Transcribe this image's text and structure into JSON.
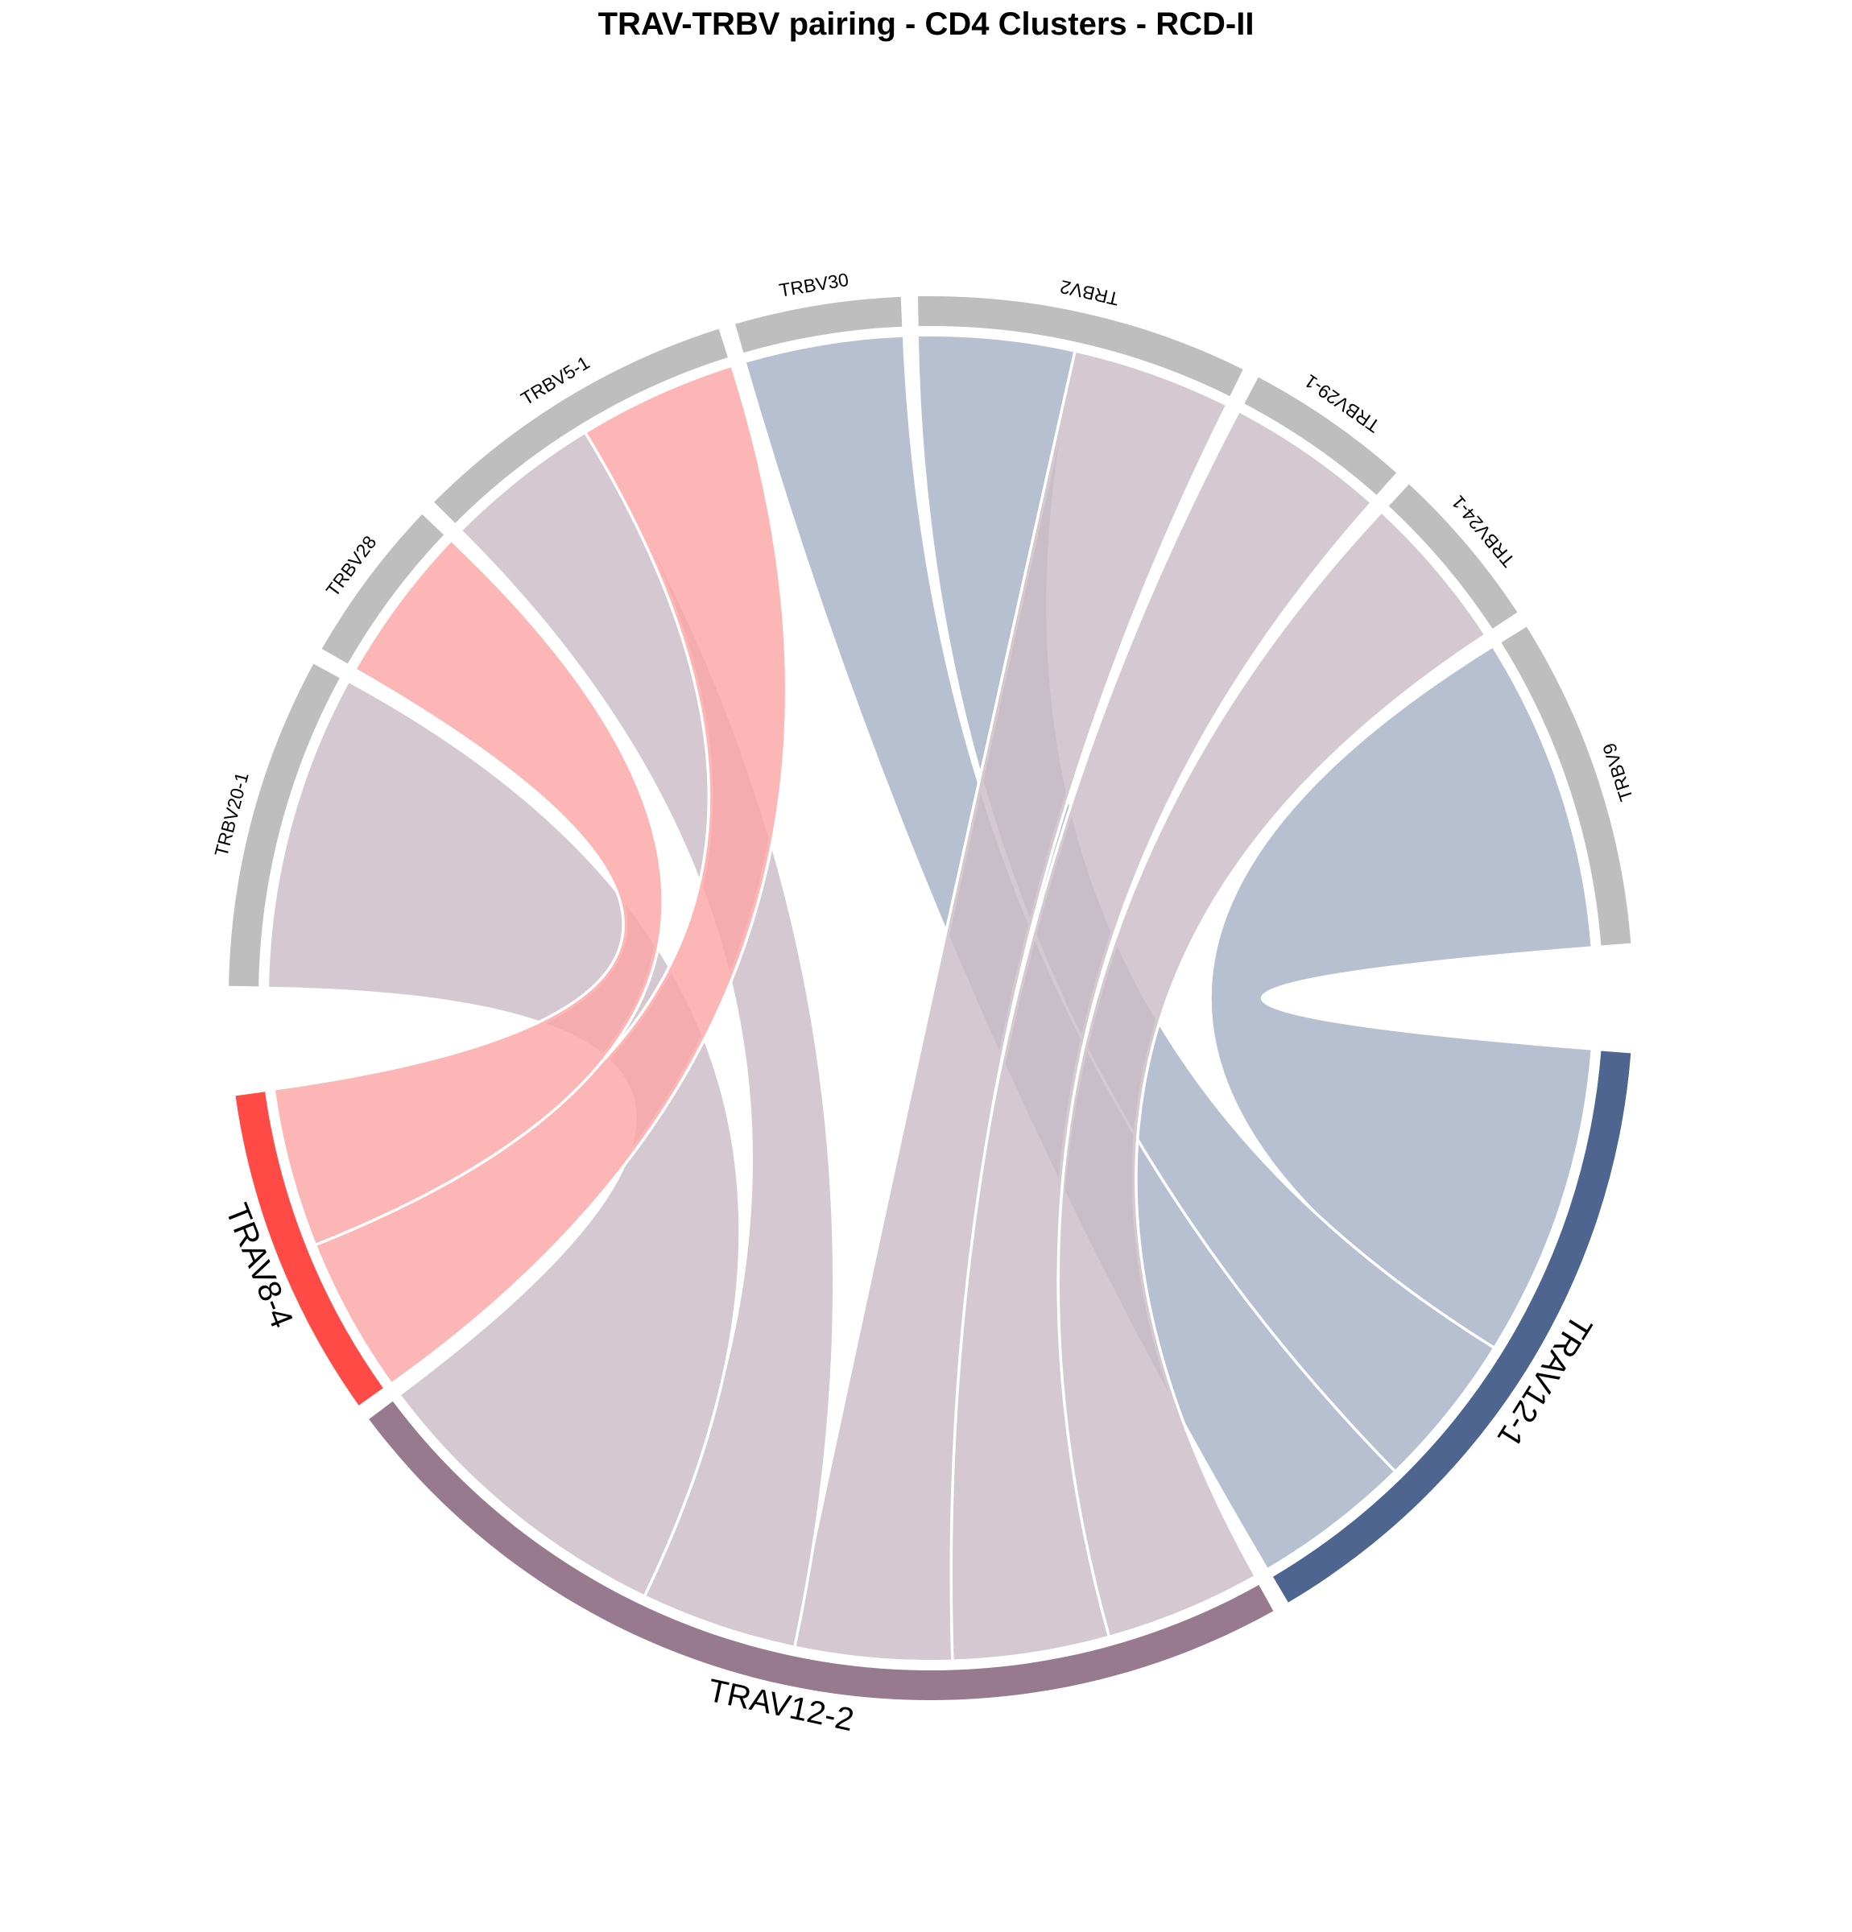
{
  "chart_data": {
    "type": "chord",
    "title": "TRAV-TRBV pairing - CD4 Clusters - RCD-II",
    "sectors": [
      {
        "name": "TRBV9",
        "value": 1,
        "group": "TRBV",
        "color": "#bebebe"
      },
      {
        "name": "TRBV24-1",
        "value": 0.5,
        "group": "TRBV",
        "color": "#bebebe"
      },
      {
        "name": "TRBV29-1",
        "value": 0.5,
        "group": "TRBV",
        "color": "#bebebe"
      },
      {
        "name": "TRBV2",
        "value": 1,
        "group": "TRBV",
        "color": "#bebebe"
      },
      {
        "name": "TRBV30",
        "value": 0.5,
        "group": "TRBV",
        "color": "#bebebe"
      },
      {
        "name": "TRBV5-1",
        "value": 1,
        "group": "TRBV",
        "color": "#bebebe"
      },
      {
        "name": "TRBV28",
        "value": 0.5,
        "group": "TRBV",
        "color": "#bebebe"
      },
      {
        "name": "TRBV20-1",
        "value": 1,
        "group": "TRBV",
        "color": "#bebebe"
      },
      {
        "name": "TRAV8-4",
        "value": 1,
        "group": "TRAV",
        "color": "#ff4a46"
      },
      {
        "name": "TRAV12-2",
        "value": 3,
        "group": "TRAV",
        "color": "#987a8f"
      },
      {
        "name": "TRAV12-1",
        "value": 2,
        "group": "TRAV",
        "color": "#4e668f"
      }
    ],
    "links": [
      {
        "from": "TRAV12-1",
        "to": "TRBV9",
        "value": 1
      },
      {
        "from": "TRAV12-1",
        "to": "TRBV2",
        "value": 0.5
      },
      {
        "from": "TRAV12-1",
        "to": "TRBV30",
        "value": 0.5
      },
      {
        "from": "TRAV12-2",
        "to": "TRBV24-1",
        "value": 0.5
      },
      {
        "from": "TRAV12-2",
        "to": "TRBV29-1",
        "value": 0.5
      },
      {
        "from": "TRAV12-2",
        "to": "TRBV2",
        "value": 0.5
      },
      {
        "from": "TRAV12-2",
        "to": "TRBV5-1",
        "value": 0.5
      },
      {
        "from": "TRAV12-2",
        "to": "TRBV20-1",
        "value": 1
      },
      {
        "from": "TRAV8-4",
        "to": "TRBV5-1",
        "value": 0.5
      },
      {
        "from": "TRAV8-4",
        "to": "TRBV28",
        "value": 0.5
      }
    ],
    "link_colors": {
      "TRAV12-1": "#a6b2c6",
      "TRAV12-2": "#cbbdc6",
      "TRAV8-4": "#fca6a6"
    }
  }
}
